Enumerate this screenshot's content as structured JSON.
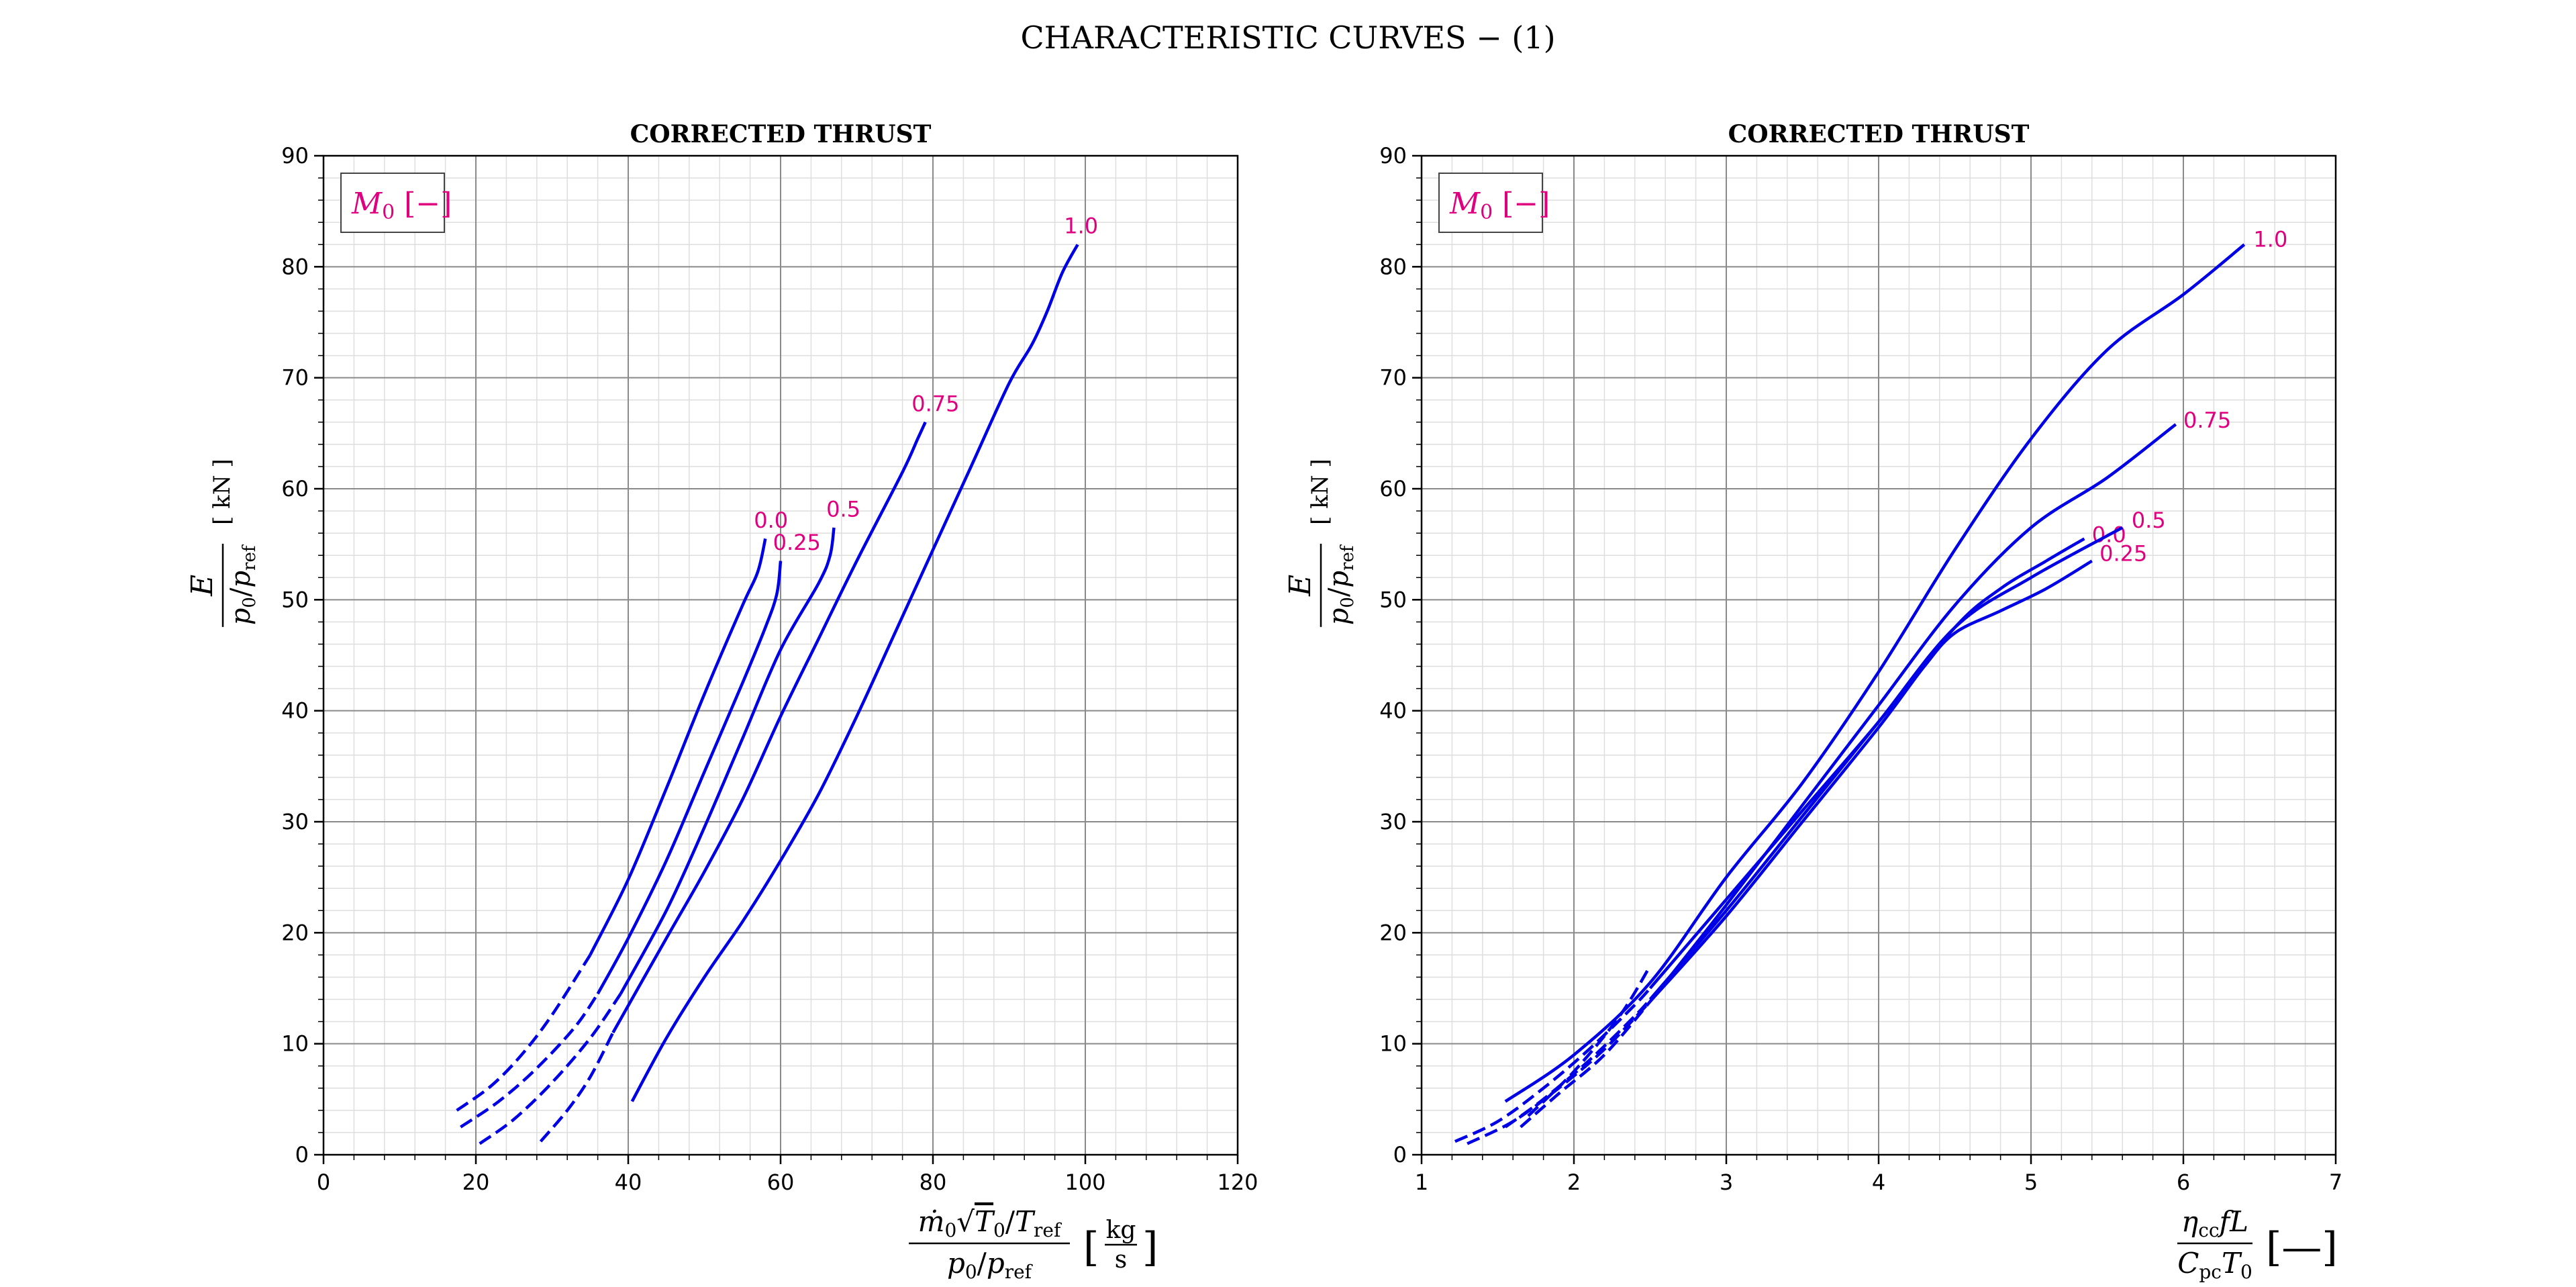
{
  "figure": {
    "suptitle": "CHARACTERISTIC CURVES  − (1)"
  },
  "colors": {
    "curve": "#0000e6",
    "label": "#e0007f",
    "grid_major": "#8a8a8a",
    "grid_minor": "#dedede"
  },
  "chart_data": [
    {
      "type": "line",
      "title": "CORRECTED THRUST",
      "xlabel": "ṁ₀√(T₀/T_ref) / (p₀/p_ref)  [kg/s]",
      "ylabel": "E / (p₀/p_ref)  [ kN ]",
      "xlim": [
        0,
        120
      ],
      "ylim": [
        0,
        90
      ],
      "xticks": [
        0,
        20,
        40,
        60,
        80,
        100,
        120
      ],
      "yticks": [
        0,
        10,
        20,
        30,
        40,
        50,
        60,
        70,
        80,
        90
      ],
      "grid": true,
      "legend_title": "M₀ [−]",
      "legend_position": "top-left",
      "series": [
        {
          "name": "0.0",
          "dashed": [
            [
              17.5,
              4.0
            ],
            [
              22,
              6.2
            ],
            [
              26,
              9.0
            ],
            [
              30,
              12.6
            ],
            [
              35,
              18.0
            ]
          ],
          "solid": [
            [
              35,
              18.0
            ],
            [
              40,
              24.8
            ],
            [
              45,
              33.0
            ],
            [
              50,
              41.5
            ],
            [
              55,
              49.5
            ],
            [
              57,
              52.5
            ],
            [
              58,
              55.5
            ]
          ],
          "label_anchor": [
            58,
            55.5
          ],
          "label_offset": [
            -1.5,
            1.0
          ]
        },
        {
          "name": "0.25",
          "dashed": [
            [
              18,
              2.5
            ],
            [
              23,
              4.8
            ],
            [
              28,
              7.8
            ],
            [
              33,
              11.5
            ],
            [
              36,
              14.5
            ]
          ],
          "solid": [
            [
              36,
              14.5
            ],
            [
              40,
              19.5
            ],
            [
              45,
              26.5
            ],
            [
              50,
              34.5
            ],
            [
              55,
              42.5
            ],
            [
              58,
              47.5
            ],
            [
              59.5,
              50.5
            ],
            [
              60,
              53.5
            ]
          ],
          "label_anchor": [
            60,
            53.5
          ],
          "label_offset": [
            -1.0,
            1.0
          ]
        },
        {
          "name": "0.5",
          "dashed": [
            [
              20.5,
              1.0
            ],
            [
              25,
              3.2
            ],
            [
              30,
              6.5
            ],
            [
              35,
              10.5
            ],
            [
              39,
              14.5
            ]
          ],
          "solid": [
            [
              39,
              14.5
            ],
            [
              45,
              22.0
            ],
            [
              50,
              29.5
            ],
            [
              55,
              37.5
            ],
            [
              60,
              45.5
            ],
            [
              65,
              51.5
            ],
            [
              66.5,
              54.0
            ],
            [
              67,
              56.5
            ]
          ],
          "label_anchor": [
            67,
            56.5
          ],
          "label_offset": [
            -1.0,
            1.0
          ]
        },
        {
          "name": "0.75",
          "dashed": [
            [
              28.5,
              1.2
            ],
            [
              32,
              4.0
            ],
            [
              35,
              7.0
            ],
            [
              38,
              11.0
            ]
          ],
          "solid": [
            [
              38,
              11.0
            ],
            [
              45,
              19.5
            ],
            [
              50,
              25.5
            ],
            [
              55,
              32.0
            ],
            [
              60,
              39.5
            ],
            [
              65,
              46.5
            ],
            [
              70,
              53.5
            ],
            [
              76,
              61.5
            ],
            [
              78,
              64.5
            ],
            [
              79,
              66.0
            ]
          ],
          "label_anchor": [
            79,
            66.0
          ],
          "label_offset": [
            -1.8,
            1.0
          ]
        },
        {
          "name": "1.0",
          "dashed": [],
          "solid": [
            [
              40.5,
              4.8
            ],
            [
              45,
              10.5
            ],
            [
              50,
              16.0
            ],
            [
              55,
              21.0
            ],
            [
              60,
              26.5
            ],
            [
              65,
              32.5
            ],
            [
              70,
              39.5
            ],
            [
              75,
              47.0
            ],
            [
              80,
              54.5
            ],
            [
              85,
              62.0
            ],
            [
              90,
              69.5
            ],
            [
              93,
              73.0
            ],
            [
              95,
              76.0
            ],
            [
              97,
              79.5
            ],
            [
              99,
              82.0
            ]
          ],
          "label_anchor": [
            99,
            82.0
          ],
          "label_offset": [
            -1.8,
            1.0
          ]
        }
      ]
    },
    {
      "type": "line",
      "title": "CORRECTED THRUST",
      "xlabel": "η_cc f L / (C_pc T₀)  [−]",
      "ylabel": "E / (p₀/p_ref)  [ kN ]",
      "xlim": [
        1,
        7
      ],
      "ylim": [
        0,
        90
      ],
      "xticks": [
        1,
        2,
        3,
        4,
        5,
        6,
        7
      ],
      "yticks": [
        0,
        10,
        20,
        30,
        40,
        50,
        60,
        70,
        80,
        90
      ],
      "grid": true,
      "legend_title": "M₀ [−]",
      "legend_position": "top-left",
      "series": [
        {
          "name": "0.0",
          "dashed": [
            [
              1.22,
              1.2
            ],
            [
              1.5,
              3.0
            ],
            [
              1.8,
              6.0
            ],
            [
              2.1,
              9.5
            ],
            [
              2.4,
              13.5
            ],
            [
              2.5,
              15.0
            ]
          ],
          "solid": [
            [
              2.5,
              15.0
            ],
            [
              3.0,
              23.0
            ],
            [
              3.5,
              31.0
            ],
            [
              4.0,
              39.0
            ],
            [
              4.5,
              47.5
            ],
            [
              4.8,
              51.0
            ],
            [
              5.1,
              53.5
            ],
            [
              5.35,
              55.5
            ]
          ],
          "label_anchor": [
            5.35,
            55.5
          ],
          "label_offset": [
            0.05,
            -0.3
          ]
        },
        {
          "name": "0.25",
          "dashed": [
            [
              1.3,
              1.0
            ],
            [
              1.6,
              3.0
            ],
            [
              1.9,
              6.0
            ],
            [
              2.2,
              9.5
            ],
            [
              2.5,
              13.8
            ]
          ],
          "solid": [
            [
              2.5,
              13.8
            ],
            [
              3.0,
              21.5
            ],
            [
              3.5,
              30.0
            ],
            [
              4.0,
              38.5
            ],
            [
              4.3,
              44.0
            ],
            [
              4.5,
              47.0
            ],
            [
              4.8,
              49.0
            ],
            [
              5.1,
              51.0
            ],
            [
              5.4,
              53.5
            ]
          ],
          "label_anchor": [
            5.4,
            53.5
          ],
          "label_offset": [
            0.05,
            0.0
          ]
        },
        {
          "name": "0.5",
          "dashed": [
            [
              1.55,
              2.5
            ],
            [
              1.8,
              5.0
            ],
            [
              2.1,
              8.5
            ],
            [
              2.4,
              12.5
            ],
            [
              2.5,
              14.0
            ]
          ],
          "solid": [
            [
              2.5,
              14.0
            ],
            [
              3.0,
              22.0
            ],
            [
              3.5,
              30.5
            ],
            [
              4.0,
              39.0
            ],
            [
              4.5,
              47.5
            ],
            [
              5.0,
              52.0
            ],
            [
              5.6,
              56.5
            ]
          ],
          "label_anchor": [
            5.6,
            56.5
          ],
          "label_offset": [
            0.06,
            0.0
          ]
        },
        {
          "name": "0.75",
          "dashed": [
            [
              1.65,
              2.5
            ],
            [
              1.9,
              5.5
            ],
            [
              2.2,
              9.0
            ],
            [
              2.5,
              13.8
            ]
          ],
          "solid": [
            [
              2.5,
              13.8
            ],
            [
              3.0,
              22.5
            ],
            [
              3.5,
              31.5
            ],
            [
              4.0,
              40.5
            ],
            [
              4.5,
              49.5
            ],
            [
              5.0,
              56.5
            ],
            [
              5.5,
              61.0
            ],
            [
              5.95,
              65.8
            ]
          ],
          "label_anchor": [
            5.95,
            65.8
          ],
          "label_offset": [
            0.05,
            -0.3
          ]
        },
        {
          "name": "1.0",
          "dashed": [
            [
              1.7,
              3.5
            ],
            [
              2.0,
              7.5
            ],
            [
              2.3,
              12.5
            ],
            [
              2.5,
              17.0
            ]
          ],
          "solid": [
            [
              1.55,
              4.8
            ],
            [
              2.0,
              9.0
            ],
            [
              2.5,
              15.5
            ],
            [
              3.0,
              25.0
            ],
            [
              3.5,
              33.5
            ],
            [
              4.0,
              43.5
            ],
            [
              4.5,
              54.5
            ],
            [
              5.0,
              64.5
            ],
            [
              5.5,
              72.5
            ],
            [
              6.0,
              77.5
            ],
            [
              6.4,
              82.0
            ]
          ],
          "label_anchor": [
            6.4,
            82.0
          ],
          "label_offset": [
            0.06,
            -0.2
          ]
        }
      ]
    }
  ]
}
